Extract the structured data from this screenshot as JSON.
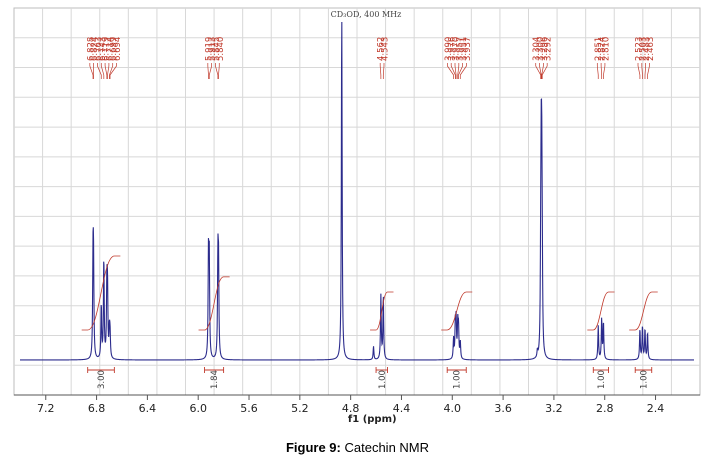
{
  "chart_data": {
    "type": "line",
    "subtitle": "CD₃OD, 400 MHz",
    "xlabel": "f1 (ppm)",
    "ylabel": "",
    "xlim": [
      7.45,
      2.05
    ],
    "x_reversed": true,
    "x_ticks": [
      "7.2",
      "6.8",
      "6.4",
      "6.0",
      "5.6",
      "5.2",
      "4.8",
      "4.4",
      "4.0",
      "3.6",
      "3.2",
      "2.8",
      "2.4"
    ],
    "grid": true,
    "colors": {
      "spectrum": "#2b2b8c",
      "annotation": "#c0392b",
      "grid": "#d8d8d8",
      "axis": "#555555"
    },
    "peak_label_groups": [
      {
        "labels": [
          "6.828",
          "6.824",
          "6.763",
          "6.743",
          "6.719",
          "6.714",
          "6.699",
          "6.694"
        ]
      },
      {
        "labels": [
          "5.919",
          "5.913",
          "5.845",
          "5.840"
        ]
      },
      {
        "labels": [
          "4.562",
          "4.543"
        ]
      },
      {
        "labels": [
          "3.990",
          "3.976",
          "3.970",
          "3.957",
          "3.951",
          "3.937"
        ]
      },
      {
        "labels": [
          "3.304",
          "3.300",
          "3.296",
          "3.292"
        ]
      },
      {
        "labels": [
          "2.851",
          "2.824",
          "2.810"
        ]
      },
      {
        "labels": [
          "2.523",
          "2.503",
          "2.483",
          "2.463"
        ]
      }
    ],
    "peaks": [
      {
        "ppm": 6.828,
        "height": 0.27
      },
      {
        "ppm": 6.824,
        "height": 0.25
      },
      {
        "ppm": 6.763,
        "height": 0.16
      },
      {
        "ppm": 6.743,
        "height": 0.3
      },
      {
        "ppm": 6.719,
        "height": 0.21
      },
      {
        "ppm": 6.714,
        "height": 0.19
      },
      {
        "ppm": 6.699,
        "height": 0.08
      },
      {
        "ppm": 6.694,
        "height": 0.07
      },
      {
        "ppm": 5.919,
        "height": 0.3
      },
      {
        "ppm": 5.913,
        "height": 0.28
      },
      {
        "ppm": 5.845,
        "height": 0.28
      },
      {
        "ppm": 5.84,
        "height": 0.26
      },
      {
        "ppm": 4.87,
        "height": 1.05
      },
      {
        "ppm": 4.62,
        "height": 0.04
      },
      {
        "ppm": 4.562,
        "height": 0.19
      },
      {
        "ppm": 4.543,
        "height": 0.19
      },
      {
        "ppm": 3.99,
        "height": 0.06
      },
      {
        "ppm": 3.976,
        "height": 0.1
      },
      {
        "ppm": 3.97,
        "height": 0.11
      },
      {
        "ppm": 3.957,
        "height": 0.1
      },
      {
        "ppm": 3.951,
        "height": 0.09
      },
      {
        "ppm": 3.937,
        "height": 0.05
      },
      {
        "ppm": 3.304,
        "height": 0.22
      },
      {
        "ppm": 3.3,
        "height": 0.45
      },
      {
        "ppm": 3.296,
        "height": 0.43
      },
      {
        "ppm": 3.292,
        "height": 0.21
      },
      {
        "ppm": 3.33,
        "height": 0.02
      },
      {
        "ppm": 2.851,
        "height": 0.1
      },
      {
        "ppm": 2.824,
        "height": 0.12
      },
      {
        "ppm": 2.81,
        "height": 0.11
      },
      {
        "ppm": 2.523,
        "height": 0.09
      },
      {
        "ppm": 2.503,
        "height": 0.1
      },
      {
        "ppm": 2.483,
        "height": 0.09
      },
      {
        "ppm": 2.463,
        "height": 0.08
      }
    ],
    "integrals": [
      {
        "from": 6.87,
        "to": 6.66,
        "value": "3.00"
      },
      {
        "from": 5.95,
        "to": 5.8,
        "value": "1.84"
      },
      {
        "from": 4.6,
        "to": 4.51,
        "value": "1.00"
      },
      {
        "from": 4.04,
        "to": 3.89,
        "value": "1.00"
      },
      {
        "from": 2.89,
        "to": 2.77,
        "value": "1.00"
      },
      {
        "from": 2.56,
        "to": 2.43,
        "value": "1.00"
      }
    ]
  },
  "caption": {
    "label": "Figure 9:",
    "text": " Catechin NMR"
  }
}
